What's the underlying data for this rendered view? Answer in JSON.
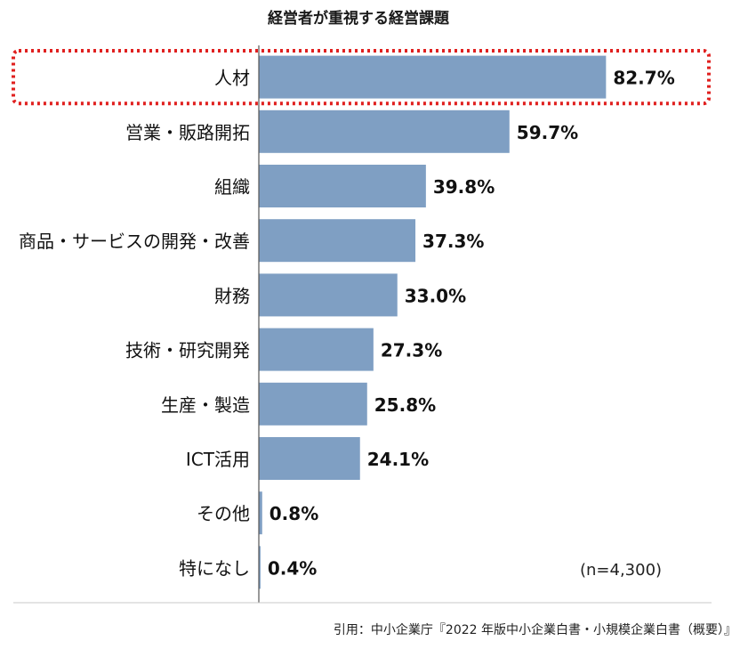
{
  "chart_data": {
    "type": "bar",
    "orientation": "horizontal",
    "title": "経営者が重視する経営課題",
    "categories": [
      "人材",
      "営業・販路開拓",
      "組織",
      "商品・サービスの開発・改善",
      "財務",
      "技術・研究開発",
      "生産・製造",
      "ICT活用",
      "その他",
      "特になし"
    ],
    "values": [
      82.7,
      59.7,
      39.8,
      37.3,
      33.0,
      27.3,
      25.8,
      24.1,
      0.8,
      0.4
    ],
    "value_labels": [
      "82.7%",
      "59.7%",
      "39.8%",
      "37.3%",
      "33.0%",
      "27.3%",
      "25.8%",
      "24.1%",
      "0.8%",
      "0.4%"
    ],
    "xlim": [
      0,
      100
    ],
    "unit": "%",
    "grid": false,
    "highlighted_category": "人材",
    "sample_note": "(n=4,300)",
    "caption": "引用：中小企業庁『2022 年版中小企業白書・小規模企業白書（概要）』"
  },
  "colors": {
    "bar": "#7f9fc3",
    "highlight": "#e0201f",
    "axis": "#555555",
    "text": "#111111"
  }
}
